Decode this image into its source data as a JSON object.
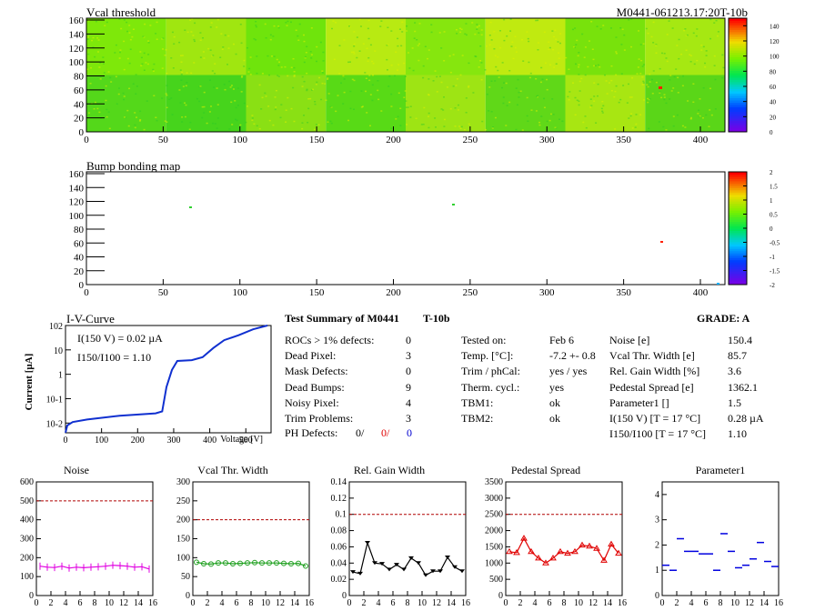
{
  "header": {
    "map1_title": "Vcal threshold",
    "module_id": "M0441-061213.17:20T-10b",
    "map2_title": "Bump bonding map"
  },
  "maps": {
    "x_ticks": [
      "0",
      "50",
      "100",
      "150",
      "200",
      "250",
      "300",
      "350",
      "400"
    ],
    "y_ticks": [
      "0",
      "20",
      "40",
      "60",
      "80",
      "100",
      "120",
      "140",
      "160"
    ],
    "scale1_ticks": [
      "0",
      "20",
      "40",
      "60",
      "80",
      "100",
      "120",
      "140"
    ],
    "scale2_ticks": [
      "-2",
      "-1.5",
      "-1",
      "-0.5",
      "0",
      "0.5",
      "1",
      "1.5",
      "2"
    ],
    "colors": {
      "bright_green": "#7cfc00",
      "yellow_green": "#c8f000",
      "hot": "#ff2000"
    }
  },
  "ivcurve": {
    "title": "I-V-Curve",
    "ylabel": "Current [µA]",
    "xlabel": "Voltage [V]",
    "x_ticks": [
      "0",
      "100",
      "200",
      "300",
      "400",
      "500"
    ],
    "y_ticks": [
      "10-2",
      "10-1",
      "1",
      "10",
      "102"
    ],
    "i150": "I(150 V) = 0.02 µA",
    "ratio": "I150/I100 = 1.10",
    "curve_color": "#1030d0"
  },
  "summary": {
    "title": "Test Summary of M0441",
    "tag": "T-10b",
    "grade": "GRADE:  A",
    "left": [
      {
        "label": "ROCs > 1% defects:",
        "value": "0"
      },
      {
        "label": "Dead Pixel:",
        "value": "3"
      },
      {
        "label": "Mask Defects:",
        "value": "0"
      },
      {
        "label": "Dead Bumps:",
        "value": "9"
      },
      {
        "label": "Noisy Pixel:",
        "value": "4"
      },
      {
        "label": "Trim Problems:",
        "value": "3"
      }
    ],
    "ph_label": "PH Defects:",
    "ph_values": [
      "0/",
      "0/",
      "0"
    ],
    "middle": [
      {
        "label": "Tested on:",
        "value": "Feb 6"
      },
      {
        "label": "Temp. [°C]:",
        "value": "-7.2 +- 0.8"
      },
      {
        "label": "Trim / phCal:",
        "value": "yes / yes"
      },
      {
        "label": "Therm. cycl.:",
        "value": "yes"
      },
      {
        "label": "TBM1:",
        "value": "ok"
      },
      {
        "label": "TBM2:",
        "value": "ok"
      }
    ],
    "right": [
      {
        "label": "Noise [e]",
        "value": "150.4"
      },
      {
        "label": "Vcal Thr. Width [e]",
        "value": "85.7"
      },
      {
        "label": "Rel. Gain Width [%]",
        "value": "3.6"
      },
      {
        "label": "Pedestal Spread [e]",
        "value": "1362.1"
      },
      {
        "label": "Parameter1 []",
        "value": "1.5"
      },
      {
        "label": "I(150 V) [T = 17 °C]",
        "value": "0.28 µA"
      },
      {
        "label": "I150/I100  [T = 17 °C]",
        "value": "1.10"
      }
    ]
  },
  "chart_data": [
    {
      "type": "line",
      "title": "Noise",
      "x": [
        0,
        1,
        2,
        3,
        4,
        5,
        6,
        7,
        8,
        9,
        10,
        11,
        12,
        13,
        14,
        15
      ],
      "values": [
        155,
        150,
        148,
        155,
        145,
        150,
        147,
        150,
        152,
        155,
        160,
        158,
        155,
        150,
        152,
        140
      ],
      "xlim": [
        0,
        16
      ],
      "ylim": [
        0,
        600
      ],
      "threshold": 500,
      "color": "#e000e0",
      "y_ticks": [
        "0",
        "100",
        "200",
        "300",
        "400",
        "500",
        "600"
      ]
    },
    {
      "type": "line",
      "title": "Vcal Thr. Width",
      "x": [
        0,
        1,
        2,
        3,
        4,
        5,
        6,
        7,
        8,
        9,
        10,
        11,
        12,
        13,
        14,
        15
      ],
      "values": [
        88,
        84,
        83,
        86,
        86,
        84,
        85,
        86,
        87,
        86,
        86,
        86,
        85,
        84,
        85,
        78
      ],
      "xlim": [
        0,
        16
      ],
      "ylim": [
        0,
        300
      ],
      "threshold": 200,
      "color": "#20a020",
      "y_ticks": [
        "0",
        "50",
        "100",
        "150",
        "200",
        "250",
        "300"
      ]
    },
    {
      "type": "line",
      "title": "Rel. Gain Width",
      "x": [
        0,
        1,
        2,
        3,
        4,
        5,
        6,
        7,
        8,
        9,
        10,
        11,
        12,
        13,
        14,
        15
      ],
      "values": [
        0.029,
        0.027,
        0.065,
        0.04,
        0.039,
        0.032,
        0.038,
        0.032,
        0.046,
        0.04,
        0.025,
        0.03,
        0.03,
        0.047,
        0.035,
        0.03
      ],
      "xlim": [
        0,
        16
      ],
      "ylim": [
        0,
        0.14
      ],
      "threshold": 0.1,
      "color": "#000000",
      "y_ticks": [
        "0",
        "0.02",
        "0.04",
        "0.06",
        "0.08",
        "0.1",
        "0.12",
        "0.14"
      ]
    },
    {
      "type": "line",
      "title": "Pedestal Spread",
      "x": [
        0,
        1,
        2,
        3,
        4,
        5,
        6,
        7,
        8,
        9,
        10,
        11,
        12,
        13,
        14,
        15
      ],
      "values": [
        1350,
        1320,
        1760,
        1350,
        1150,
        1000,
        1150,
        1350,
        1300,
        1350,
        1550,
        1520,
        1450,
        1080,
        1580,
        1300
      ],
      "xlim": [
        0,
        16
      ],
      "ylim": [
        0,
        3500
      ],
      "threshold": 2500,
      "color": "#e00000",
      "y_ticks": [
        "0",
        "500",
        "1000",
        "1500",
        "2000",
        "2500",
        "3000",
        "3500"
      ]
    },
    {
      "type": "scatter",
      "title": "Parameter1",
      "x": [
        0,
        1,
        2,
        3,
        4,
        5,
        6,
        7,
        8,
        9,
        10,
        11,
        12,
        13,
        14,
        15
      ],
      "values": [
        1.2,
        1.0,
        2.25,
        1.75,
        1.75,
        1.65,
        1.65,
        1.0,
        2.45,
        1.75,
        1.1,
        1.2,
        1.45,
        2.1,
        1.35,
        1.15
      ],
      "xlim": [
        0,
        16
      ],
      "ylim": [
        0,
        4.5
      ],
      "color": "#0000e0",
      "y_ticks": [
        "0",
        "1",
        "2",
        "3",
        "4"
      ]
    }
  ],
  "common": {
    "x_ticks": [
      "0",
      "2",
      "4",
      "6",
      "8",
      "10",
      "12",
      "14",
      "16"
    ]
  }
}
